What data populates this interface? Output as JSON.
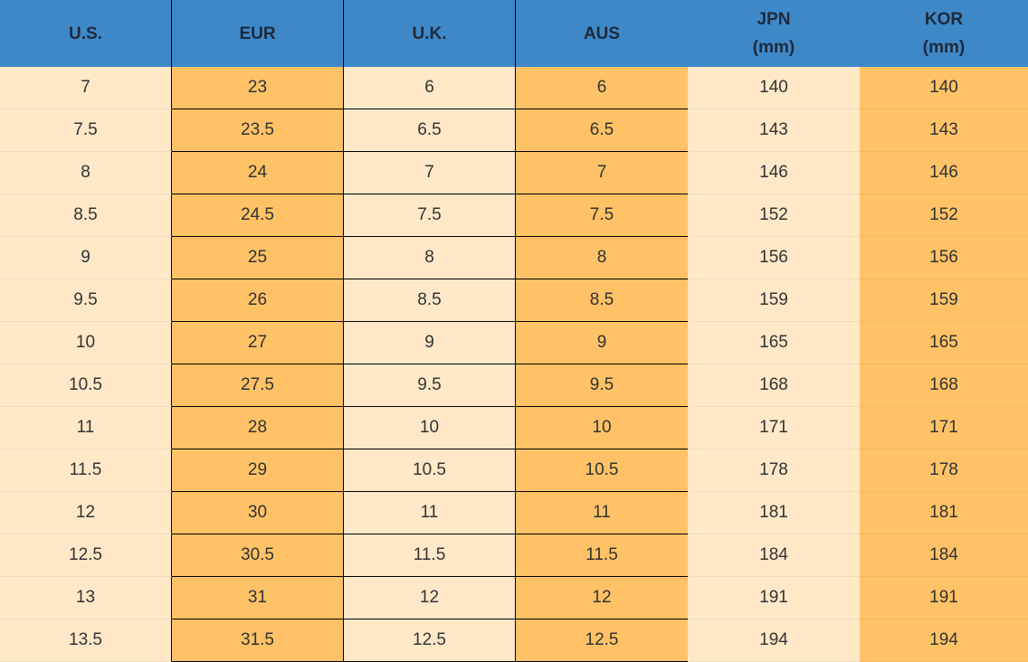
{
  "table": {
    "header": [
      "U.S.",
      "EUR",
      "U.K.",
      "AUS",
      "JPN\n(mm)",
      "KOR\n(mm)"
    ],
    "rows": [
      [
        "7",
        "23",
        "6",
        "6",
        "140",
        "140"
      ],
      [
        "7.5",
        "23.5",
        "6.5",
        "6.5",
        "143",
        "143"
      ],
      [
        "8",
        "24",
        "7",
        "7",
        "146",
        "146"
      ],
      [
        "8.5",
        "24.5",
        "7.5",
        "7.5",
        "152",
        "152"
      ],
      [
        "9",
        "25",
        "8",
        "8",
        "156",
        "156"
      ],
      [
        "9.5",
        "26",
        "8.5",
        "8.5",
        "159",
        "159"
      ],
      [
        "10",
        "27",
        "9",
        "9",
        "165",
        "165"
      ],
      [
        "10.5",
        "27.5",
        "9.5",
        "9.5",
        "168",
        "168"
      ],
      [
        "11",
        "28",
        "10",
        "10",
        "171",
        "171"
      ],
      [
        "11.5",
        "29",
        "10.5",
        "10.5",
        "178",
        "178"
      ],
      [
        "12",
        "30",
        "11",
        "11",
        "181",
        "181"
      ],
      [
        "12.5",
        "30.5",
        "11.5",
        "11.5",
        "184",
        "184"
      ],
      [
        "13",
        "31",
        "12",
        "12",
        "191",
        "191"
      ],
      [
        "13.5",
        "31.5",
        "12.5",
        "12.5",
        "194",
        "194"
      ]
    ]
  }
}
